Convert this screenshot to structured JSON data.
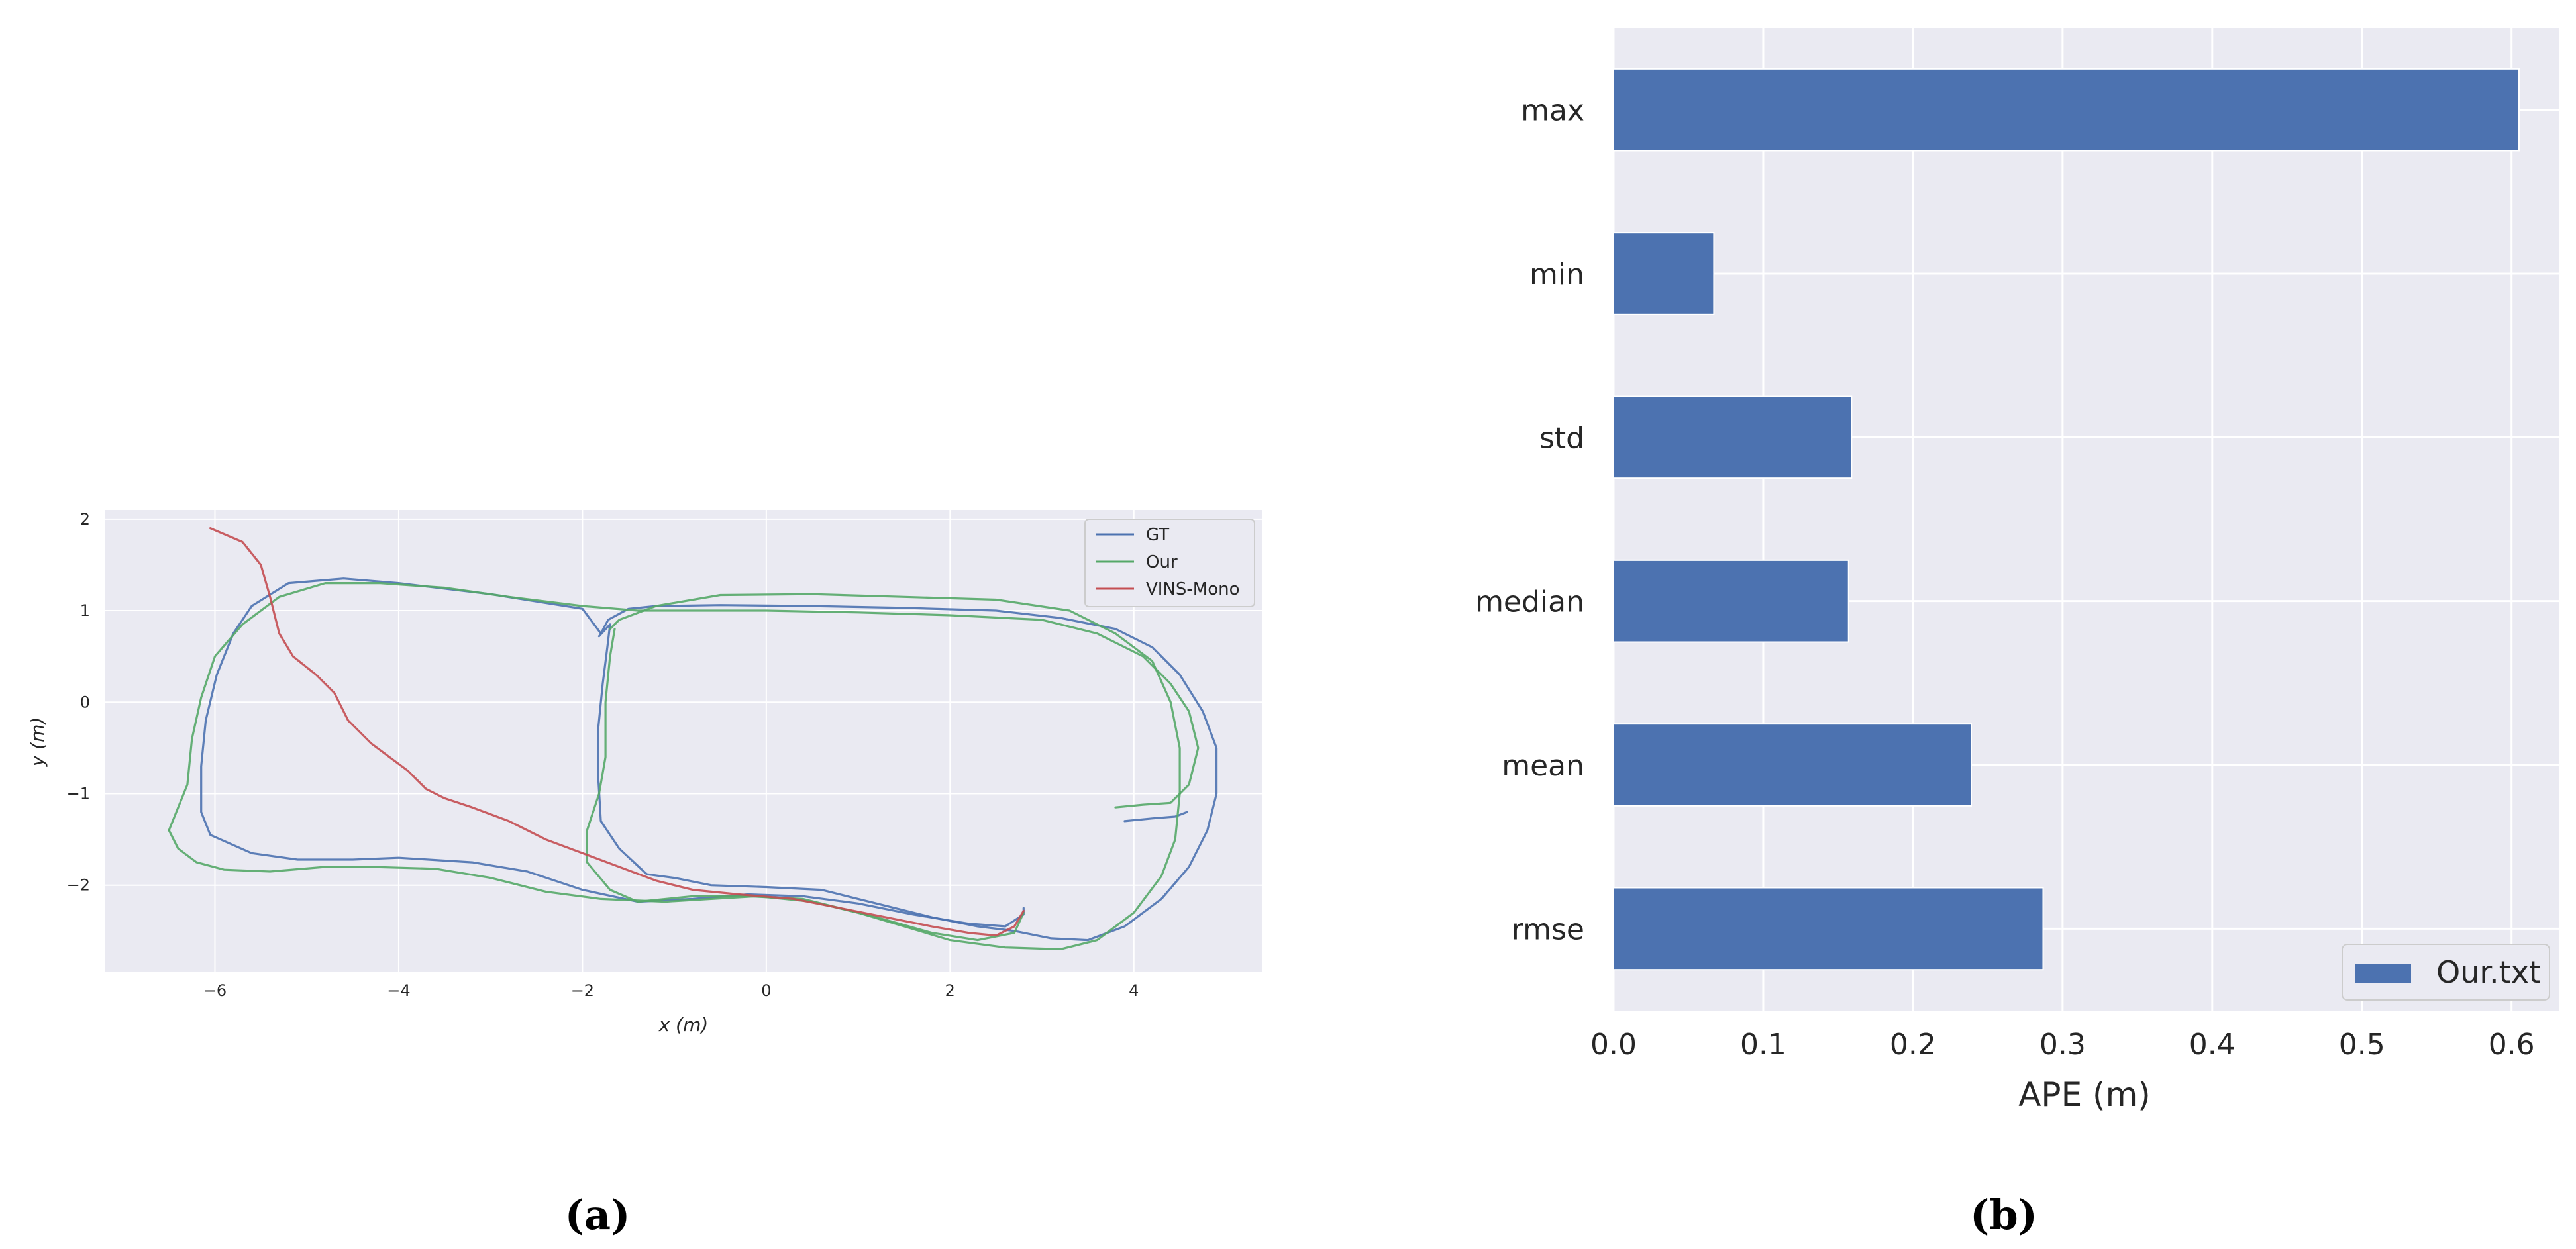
{
  "captions": {
    "a": "(a)",
    "b": "(b)"
  },
  "chart_data": [
    {
      "type": "line",
      "xlabel": "x (m)",
      "ylabel": "y (m)",
      "xlim": [
        -7.2,
        5.4
      ],
      "ylim": [
        -2.95,
        2.1
      ],
      "xticks": [
        -6,
        -4,
        -2,
        0,
        2,
        4
      ],
      "yticks": [
        -2,
        -1,
        0,
        1,
        2
      ],
      "grid": true,
      "legend_position": "top-right",
      "series": [
        {
          "name": "GT",
          "color": "#4c72b0",
          "points": [
            [
              -1.8,
              0.75
            ],
            [
              -1.72,
              0.9
            ],
            [
              -1.5,
              1.02
            ],
            [
              -1.2,
              1.05
            ],
            [
              -0.5,
              1.06
            ],
            [
              0.5,
              1.05
            ],
            [
              1.5,
              1.03
            ],
            [
              2.5,
              1.0
            ],
            [
              3.2,
              0.92
            ],
            [
              3.8,
              0.8
            ],
            [
              4.2,
              0.6
            ],
            [
              4.5,
              0.3
            ],
            [
              4.75,
              -0.1
            ],
            [
              4.9,
              -0.5
            ],
            [
              4.9,
              -1.0
            ],
            [
              4.8,
              -1.4
            ],
            [
              4.6,
              -1.8
            ],
            [
              4.3,
              -2.15
            ],
            [
              3.9,
              -2.45
            ],
            [
              3.5,
              -2.6
            ],
            [
              3.1,
              -2.58
            ],
            [
              2.7,
              -2.5
            ],
            [
              2.3,
              -2.45
            ],
            [
              1.8,
              -2.35
            ],
            [
              1.2,
              -2.2
            ],
            [
              0.6,
              -2.05
            ],
            [
              0.0,
              -2.02
            ],
            [
              -0.6,
              -2.0
            ],
            [
              -1.0,
              -1.92
            ],
            [
              -1.3,
              -1.88
            ],
            [
              -1.6,
              -1.6
            ],
            [
              -1.8,
              -1.3
            ],
            [
              -1.83,
              -0.8
            ],
            [
              -1.83,
              -0.3
            ],
            [
              -1.78,
              0.2
            ],
            [
              -1.73,
              0.6
            ],
            [
              -1.7,
              0.85
            ],
            [
              -1.82,
              0.72
            ]
          ]
        },
        {
          "name": "GT",
          "color": "#4c72b0",
          "points": [
            [
              -1.8,
              0.75
            ],
            [
              -2.0,
              1.02
            ],
            [
              -3.0,
              1.18
            ],
            [
              -4.0,
              1.3
            ],
            [
              -4.6,
              1.35
            ],
            [
              -5.2,
              1.3
            ],
            [
              -5.6,
              1.05
            ],
            [
              -5.8,
              0.75
            ],
            [
              -5.98,
              0.3
            ],
            [
              -6.1,
              -0.2
            ],
            [
              -6.15,
              -0.7
            ],
            [
              -6.15,
              -1.2
            ],
            [
              -6.05,
              -1.45
            ],
            [
              -5.6,
              -1.65
            ],
            [
              -5.1,
              -1.72
            ],
            [
              -4.5,
              -1.72
            ],
            [
              -4.0,
              -1.7
            ],
            [
              -3.2,
              -1.75
            ],
            [
              -2.6,
              -1.85
            ],
            [
              -2.0,
              -2.05
            ],
            [
              -1.4,
              -2.18
            ],
            [
              -0.8,
              -2.15
            ],
            [
              -0.2,
              -2.1
            ],
            [
              0.4,
              -2.12
            ],
            [
              1.0,
              -2.2
            ],
            [
              1.6,
              -2.32
            ],
            [
              2.2,
              -2.42
            ],
            [
              2.6,
              -2.45
            ],
            [
              2.8,
              -2.32
            ],
            [
              2.8,
              -2.25
            ]
          ]
        },
        {
          "name": "GT",
          "color": "#4c72b0",
          "points": [
            [
              3.9,
              -1.3
            ],
            [
              4.2,
              -1.27
            ],
            [
              4.45,
              -1.25
            ],
            [
              4.58,
              -1.2
            ]
          ]
        },
        {
          "name": "Our",
          "color": "#55a868",
          "points": [
            [
              -6.5,
              -1.4
            ],
            [
              -6.4,
              -1.6
            ],
            [
              -6.2,
              -1.75
            ],
            [
              -5.9,
              -1.83
            ],
            [
              -5.4,
              -1.85
            ],
            [
              -4.8,
              -1.8
            ],
            [
              -4.3,
              -1.8
            ],
            [
              -3.6,
              -1.82
            ],
            [
              -3.0,
              -1.92
            ],
            [
              -2.4,
              -2.07
            ],
            [
              -1.8,
              -2.15
            ],
            [
              -1.1,
              -2.18
            ],
            [
              -0.6,
              -2.15
            ],
            [
              -0.1,
              -2.12
            ],
            [
              0.5,
              -2.18
            ],
            [
              1.2,
              -2.35
            ],
            [
              1.8,
              -2.52
            ],
            [
              2.3,
              -2.6
            ],
            [
              2.7,
              -2.52
            ],
            [
              2.8,
              -2.3
            ]
          ]
        },
        {
          "name": "Our",
          "color": "#55a868",
          "points": [
            [
              -6.5,
              -1.4
            ],
            [
              -6.3,
              -0.9
            ],
            [
              -6.25,
              -0.4
            ],
            [
              -6.15,
              0.05
            ],
            [
              -6.0,
              0.5
            ],
            [
              -5.7,
              0.85
            ],
            [
              -5.3,
              1.15
            ],
            [
              -4.8,
              1.3
            ],
            [
              -4.2,
              1.3
            ],
            [
              -3.5,
              1.25
            ],
            [
              -2.8,
              1.15
            ],
            [
              -2.0,
              1.05
            ],
            [
              -1.4,
              1.0
            ],
            [
              -0.8,
              1.0
            ],
            [
              0.0,
              1.0
            ],
            [
              1.0,
              0.98
            ],
            [
              2.0,
              0.95
            ],
            [
              3.0,
              0.9
            ],
            [
              3.6,
              0.75
            ],
            [
              4.1,
              0.5
            ],
            [
              4.4,
              0.2
            ],
            [
              4.6,
              -0.1
            ],
            [
              4.7,
              -0.5
            ],
            [
              4.6,
              -0.9
            ],
            [
              4.4,
              -1.1
            ],
            [
              4.1,
              -1.12
            ],
            [
              3.8,
              -1.15
            ]
          ]
        },
        {
          "name": "Our",
          "color": "#55a868",
          "points": [
            [
              -1.7,
              0.8
            ],
            [
              -1.6,
              0.9
            ],
            [
              -1.2,
              1.05
            ],
            [
              -0.5,
              1.17
            ],
            [
              0.5,
              1.18
            ],
            [
              1.5,
              1.15
            ],
            [
              2.5,
              1.12
            ],
            [
              3.3,
              1.0
            ],
            [
              3.8,
              0.75
            ],
            [
              4.2,
              0.45
            ],
            [
              4.4,
              0.0
            ],
            [
              4.5,
              -0.5
            ],
            [
              4.5,
              -1.0
            ],
            [
              4.45,
              -1.5
            ],
            [
              4.3,
              -1.9
            ],
            [
              4.0,
              -2.3
            ],
            [
              3.6,
              -2.6
            ],
            [
              3.2,
              -2.7
            ],
            [
              2.6,
              -2.68
            ],
            [
              2.0,
              -2.6
            ],
            [
              1.5,
              -2.45
            ],
            [
              1.0,
              -2.3
            ],
            [
              0.4,
              -2.15
            ],
            [
              -0.2,
              -2.12
            ],
            [
              -0.8,
              -2.12
            ],
            [
              -1.4,
              -2.18
            ],
            [
              -1.7,
              -2.05
            ],
            [
              -1.95,
              -1.75
            ],
            [
              -1.95,
              -1.4
            ],
            [
              -1.82,
              -1.0
            ],
            [
              -1.75,
              -0.6
            ],
            [
              -1.75,
              0.0
            ],
            [
              -1.7,
              0.5
            ],
            [
              -1.65,
              0.8
            ]
          ]
        },
        {
          "name": "VINS-Mono",
          "color": "#c44e52",
          "points": [
            [
              -6.05,
              1.9
            ],
            [
              -5.7,
              1.75
            ],
            [
              -5.5,
              1.5
            ],
            [
              -5.4,
              1.15
            ],
            [
              -5.3,
              0.75
            ],
            [
              -5.15,
              0.5
            ],
            [
              -4.9,
              0.3
            ],
            [
              -4.7,
              0.1
            ],
            [
              -4.55,
              -0.2
            ],
            [
              -4.3,
              -0.45
            ],
            [
              -3.9,
              -0.75
            ],
            [
              -3.8,
              -0.85
            ],
            [
              -3.7,
              -0.95
            ],
            [
              -3.5,
              -1.05
            ],
            [
              -3.2,
              -1.15
            ],
            [
              -2.8,
              -1.3
            ],
            [
              -2.4,
              -1.5
            ],
            [
              -2.0,
              -1.65
            ],
            [
              -1.6,
              -1.8
            ],
            [
              -1.2,
              -1.95
            ],
            [
              -0.8,
              -2.05
            ],
            [
              -0.3,
              -2.1
            ],
            [
              0.3,
              -2.15
            ],
            [
              0.8,
              -2.25
            ],
            [
              1.3,
              -2.35
            ],
            [
              1.8,
              -2.45
            ],
            [
              2.2,
              -2.52
            ],
            [
              2.5,
              -2.55
            ],
            [
              2.7,
              -2.45
            ],
            [
              2.8,
              -2.28
            ]
          ]
        }
      ],
      "legend": [
        "GT",
        "Our",
        "VINS-Mono"
      ]
    },
    {
      "type": "bar",
      "orientation": "horizontal",
      "categories": [
        "max",
        "min",
        "std",
        "median",
        "mean",
        "rmse"
      ],
      "values": [
        0.605,
        0.067,
        0.159,
        0.157,
        0.239,
        0.287
      ],
      "series_name": "Our.txt",
      "color": "#4c72b0",
      "xlabel": "APE (m)",
      "xlim": [
        0,
        0.632
      ],
      "xticks": [
        0.0,
        0.1,
        0.2,
        0.3,
        0.4,
        0.5,
        0.6
      ],
      "xtick_labels": [
        "0.0",
        "0.1",
        "0.2",
        "0.3",
        "0.4",
        "0.5",
        "0.6"
      ],
      "grid": true,
      "legend_position": "bottom-right",
      "legend": [
        "Our.txt"
      ]
    }
  ]
}
